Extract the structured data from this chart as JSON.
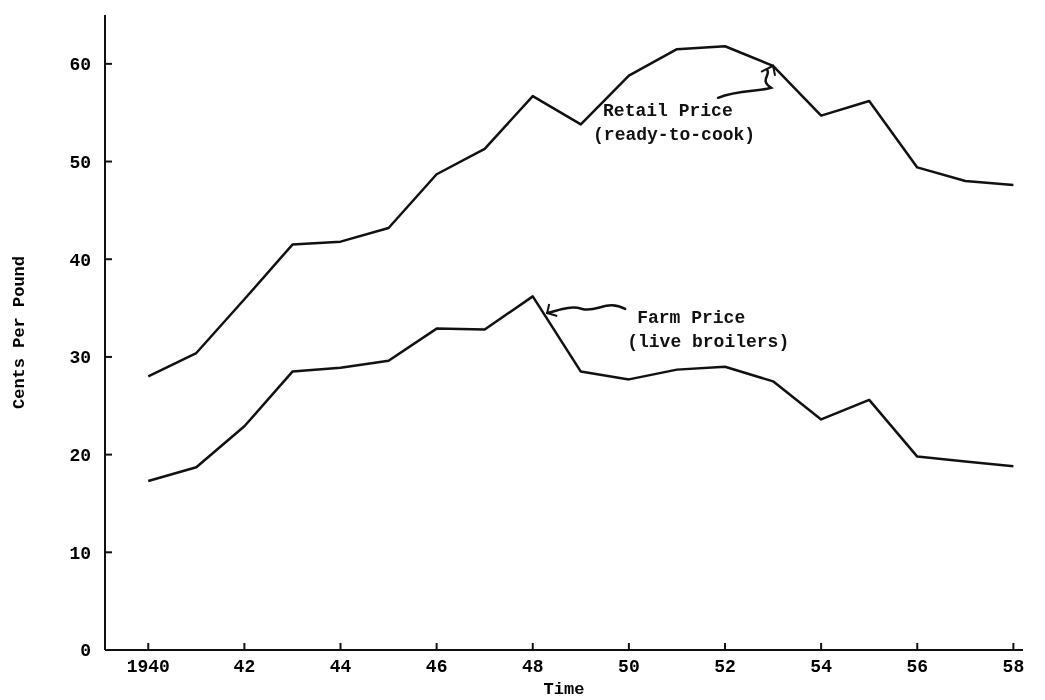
{
  "chart_data": {
    "type": "line",
    "xlabel": "Time",
    "ylabel": "Cents Per Pound",
    "x": [
      1940,
      1941,
      1942,
      1943,
      1944,
      1945,
      1946,
      1947,
      1948,
      1949,
      1950,
      1951,
      1952,
      1953,
      1954,
      1955,
      1956,
      1957,
      1958
    ],
    "series": [
      {
        "color": "#111111",
        "values": [
          28,
          30.4,
          35.9,
          41.5,
          41.8,
          43.2,
          48.7,
          51.3,
          56.7,
          53.8,
          58.8,
          61.5,
          61.8,
          59.8,
          54.7,
          56.2,
          49.4,
          48,
          47.6
        ]
      },
      {
        "color": "#111111",
        "values": [
          17.3,
          18.7,
          22.9,
          28.5,
          28.9,
          29.6,
          32.9,
          32.8,
          36.2,
          28.5,
          27.7,
          28.7,
          29,
          27.5,
          23.6,
          25.6,
          19.8,
          19.3,
          18.8
        ]
      }
    ],
    "xlim": [
      1939.1,
      1958.2
    ],
    "ylim": [
      0,
      65
    ],
    "xticks": [
      1940,
      {
        "value": 1942,
        "label": "42"
      },
      {
        "value": 1944,
        "label": "44"
      },
      {
        "value": 1946,
        "label": "46"
      },
      {
        "value": 1948,
        "label": "48"
      },
      {
        "value": 1950,
        "label": "50"
      },
      {
        "value": 1952,
        "label": "52"
      },
      {
        "value": 1954,
        "label": "54"
      },
      {
        "value": 1956,
        "label": "56"
      },
      {
        "value": 1958,
        "label": "58"
      }
    ],
    "yticks": [
      0,
      10,
      20,
      30,
      40,
      50,
      60
    ],
    "grid": false,
    "marker": "none",
    "line_style": "solid",
    "annotations": [
      {
        "text": "Retail Price\n(ready-to-cook)",
        "x": 1953,
        "y": 59.8
      },
      {
        "text": "Farm Price\n(live broilers)",
        "x": 1948.3,
        "y": 34.5
      }
    ]
  }
}
